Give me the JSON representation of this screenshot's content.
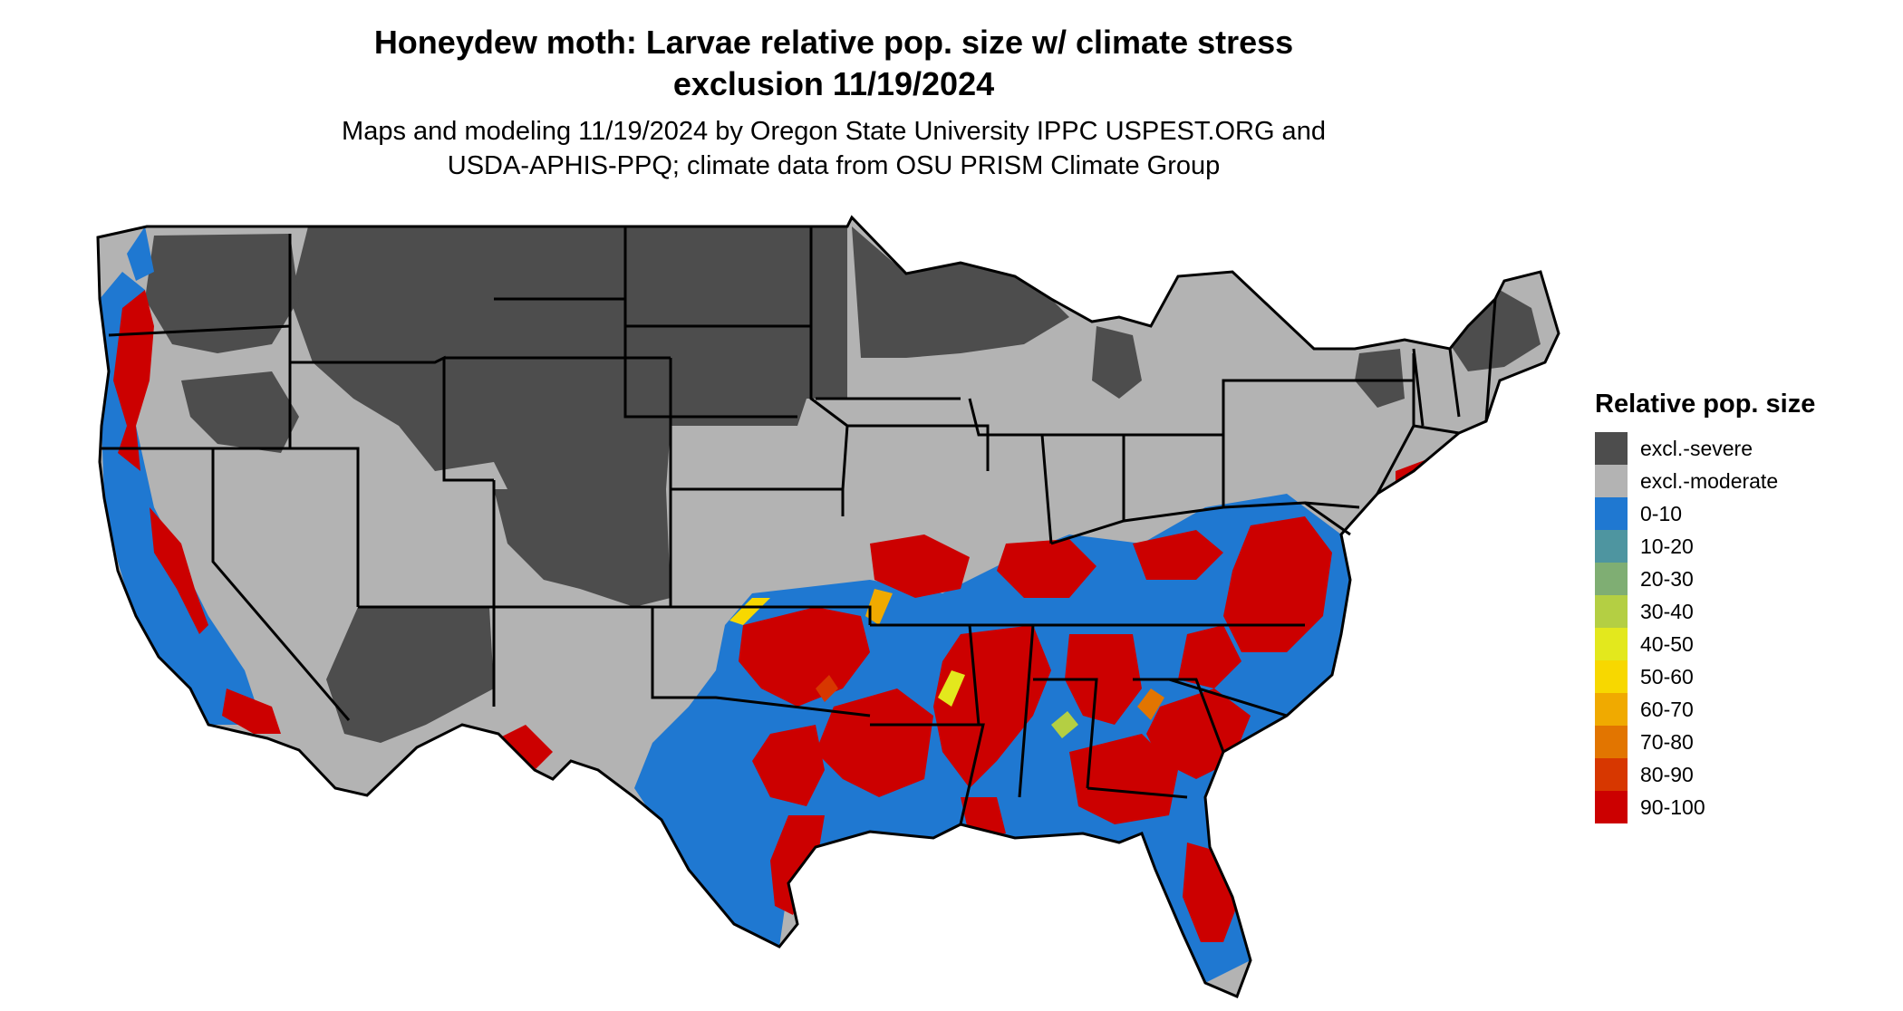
{
  "title": {
    "line1": "Honeydew moth: Larvae relative pop. size w/ climate stress",
    "line2": "exclusion 11/19/2024"
  },
  "subtitle": {
    "line1": "Maps and modeling 11/19/2024 by Oregon State University IPPC USPEST.ORG and",
    "line2": "USDA-APHIS-PPQ; climate data from OSU PRISM Climate Group"
  },
  "legend": {
    "title": "Relative pop. size",
    "items": [
      {
        "label": "excl.-severe",
        "color": "#4d4d4d"
      },
      {
        "label": "excl.-moderate",
        "color": "#b3b3b3"
      },
      {
        "label": "0-10",
        "color": "#1f78d1"
      },
      {
        "label": "10-20",
        "color": "#4e95a0"
      },
      {
        "label": "20-30",
        "color": "#7fae73"
      },
      {
        "label": "30-40",
        "color": "#b4cf43"
      },
      {
        "label": "40-50",
        "color": "#e3e81d"
      },
      {
        "label": "50-60",
        "color": "#f7d800"
      },
      {
        "label": "60-70",
        "color": "#f0aa00"
      },
      {
        "label": "70-80",
        "color": "#e27500"
      },
      {
        "label": "80-90",
        "color": "#d73700"
      },
      {
        "label": "90-100",
        "color": "#cc0000"
      }
    ]
  },
  "map": {
    "region": "conterminous-united-states",
    "boundaries": "state-outlines"
  }
}
